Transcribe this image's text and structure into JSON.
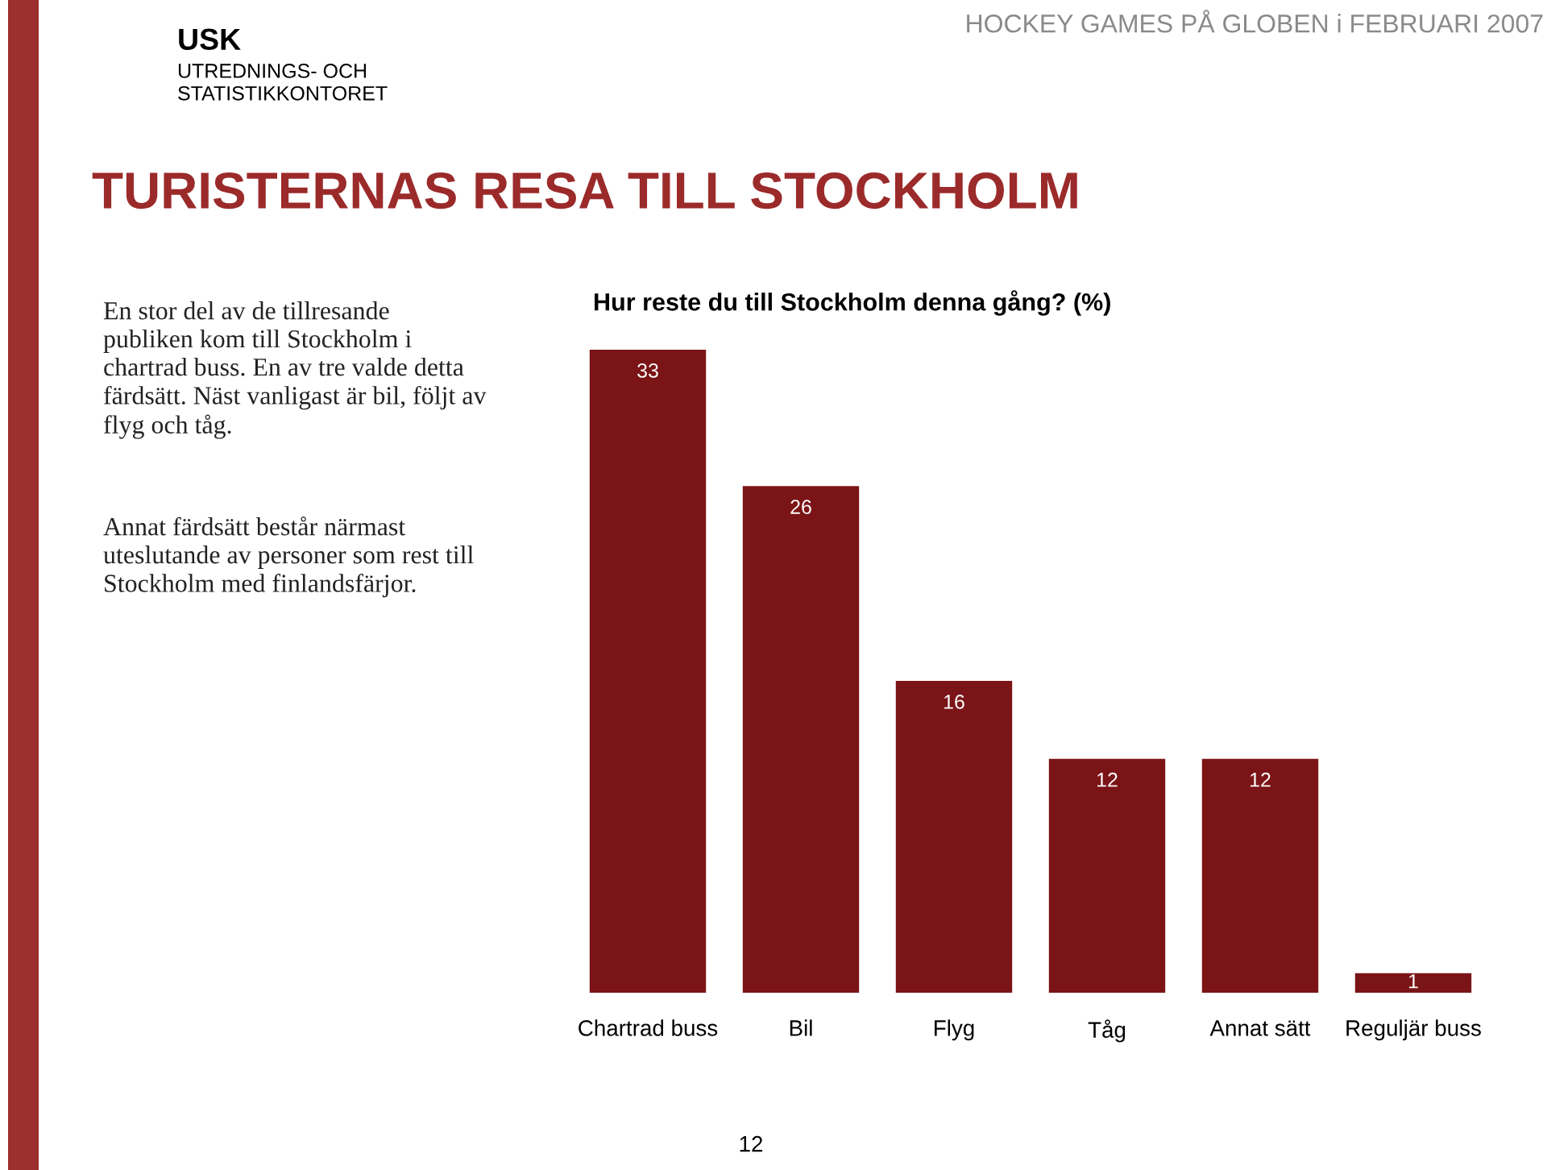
{
  "chart_data": {
    "type": "bar",
    "title": "TURISTERNAS RESA TILL STOCKHOLM",
    "subtitle": "Hur reste du till Stockholm denna gång? (%)",
    "categories": [
      "Chartrad buss",
      "Bil",
      "Flyg",
      "Tåg",
      "Annat sätt",
      "Reguljär buss"
    ],
    "values": [
      33,
      26,
      16,
      12,
      12,
      1
    ],
    "color": "#7b1416",
    "data_labels": true,
    "annotations": [
      "HOCKEY GAMES PÅ GLOBEN i FEBRUARI 2007",
      "USK",
      "UTREDNINGS- OCH\nSTATISTIKKONTORET",
      "En stor del av de tillresande\npubliken kom till Stockholm i\nchartrad buss. En av tre valde detta\nfärdsätt. Näst vanligast är bil, följt av\nflyg och tåg.",
      "Annat färdsätt består närmast\nuteslutande av personer som rest till\nStockholm med finlandsfärjor.",
      "12"
    ]
  }
}
